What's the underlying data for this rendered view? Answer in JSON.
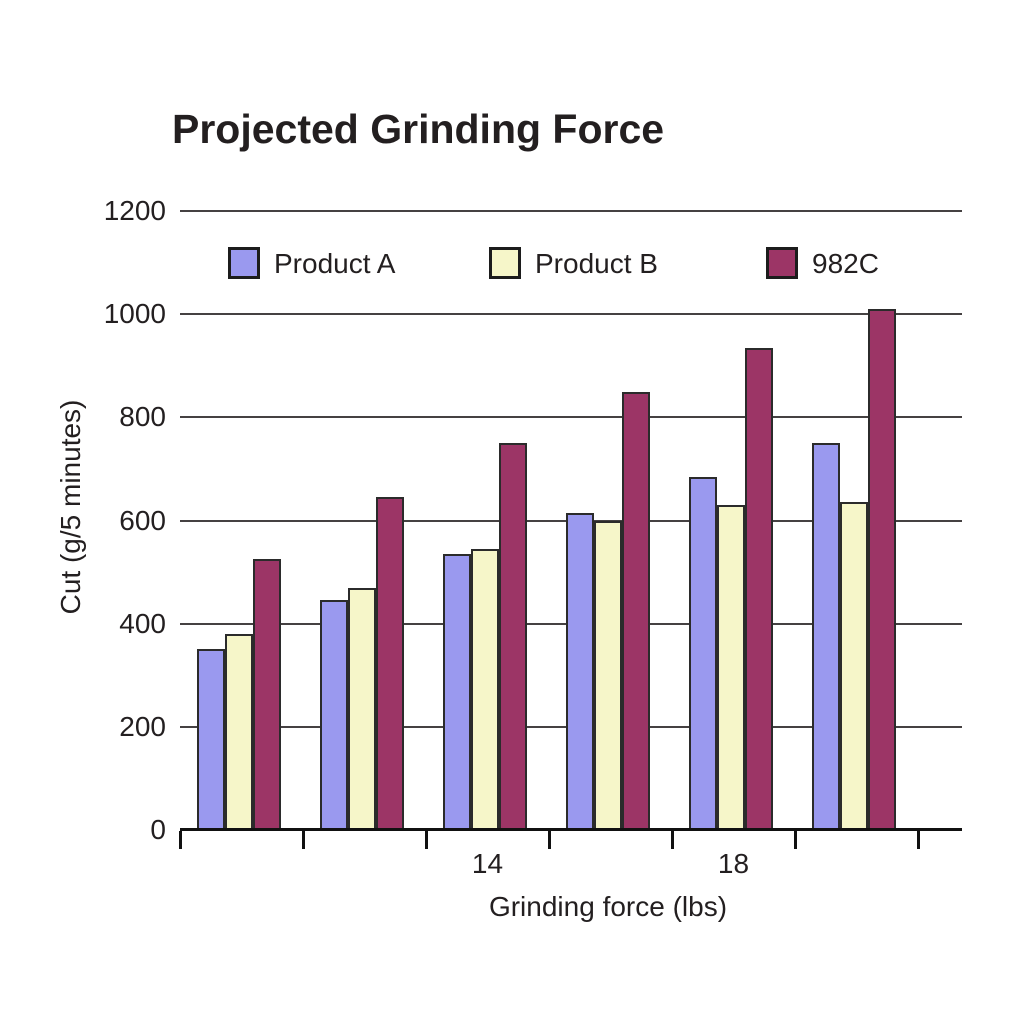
{
  "page": {
    "background_color": "#ffffff",
    "text_color": "#231f20"
  },
  "chart_data": {
    "type": "bar",
    "title": "Projected Grinding Force",
    "xlabel": "Grinding force (lbs)",
    "ylabel": "Cut (g/5 minutes)",
    "ylim": [
      0,
      1200
    ],
    "yticks": [
      0,
      200,
      400,
      600,
      800,
      1000,
      1200
    ],
    "x_tick_labels": [
      "",
      "",
      "14",
      "",
      "18",
      ""
    ],
    "num_groups": 6,
    "grid": "horizontal-only",
    "gridline_color": "#454142",
    "axis_color": "#111111",
    "bar_outline_color": "#2b2b2b",
    "legend_position": "top-inside-row",
    "series": [
      {
        "name": "Product A",
        "color": "#9a99ef",
        "values": [
          350,
          445,
          535,
          615,
          685,
          750
        ]
      },
      {
        "name": "Product B",
        "color": "#f6f6c9",
        "values": [
          380,
          470,
          545,
          600,
          630,
          635
        ]
      },
      {
        "name": "982C",
        "color": "#9c3566",
        "values": [
          525,
          645,
          750,
          850,
          935,
          1010
        ]
      }
    ]
  }
}
